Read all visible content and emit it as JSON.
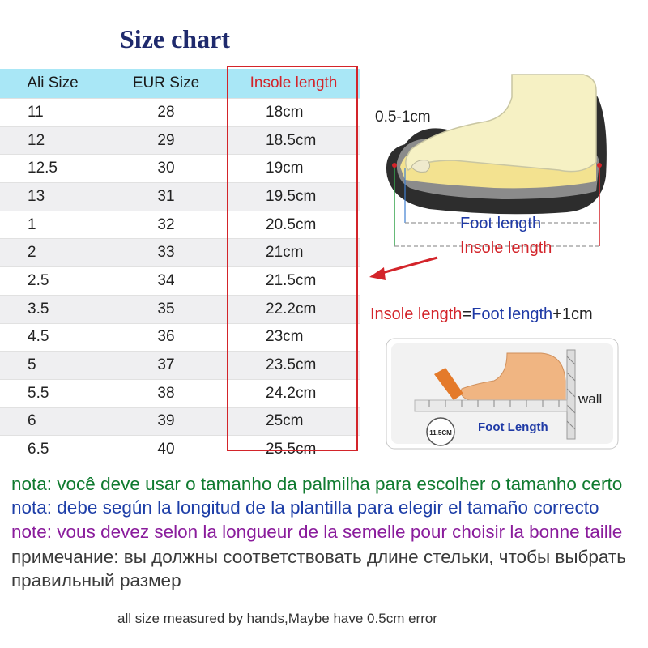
{
  "title": "Size chart",
  "table": {
    "headers": [
      "Ali Size",
      "EUR Size",
      "Insole length"
    ],
    "rows": [
      [
        "11",
        "28",
        "18cm"
      ],
      [
        "12",
        "29",
        "18.5cm"
      ],
      [
        "12.5",
        "30",
        "19cm"
      ],
      [
        "13",
        "31",
        "19.5cm"
      ],
      [
        "1",
        "32",
        "20.5cm"
      ],
      [
        "2",
        "33",
        "21cm"
      ],
      [
        "2.5",
        "34",
        "21.5cm"
      ],
      [
        "3.5",
        "35",
        "22.2cm"
      ],
      [
        "4.5",
        "36",
        "23cm"
      ],
      [
        "5",
        "37",
        "23.5cm"
      ],
      [
        "5.5",
        "38",
        "24.2cm"
      ],
      [
        "6",
        "39",
        "25cm"
      ],
      [
        "6.5",
        "40",
        "25.5cm"
      ]
    ]
  },
  "figure1": {
    "gap_label": "0.5-1cm",
    "foot_length_label": "Foot length",
    "insole_length_label": "Insole length"
  },
  "formula": {
    "insole": "Insole length",
    "equals": "=",
    "foot": "Foot length",
    "plus": "+",
    "one_cm": "1cm"
  },
  "figure2": {
    "wall_label": "wall",
    "foot_length_label": "Foot Length",
    "ruler_badge": "11.5CM"
  },
  "notes": {
    "pt": "nota: você deve usar o tamanho da palmilha para escolher o tamanho certo",
    "es": "nota: debe según la longitud de la plantilla para elegir el tamaño correcto",
    "fr": "note: vous devez selon la longueur de la semelle pour choisir la bonne taille",
    "ru": "примечание: вы должны соответствовать длине стельки, чтобы выбрать правильный размер"
  },
  "footer": "all size measured by hands,Maybe have 0.5cm error",
  "colors": {
    "title": "#1f2a6d",
    "header_bg": "#a9e7f6",
    "highlight_red": "#d3242a",
    "blue": "#1f3aa6",
    "note_pt": "#0f7a2f",
    "note_es": "#1e3fa8",
    "note_fr": "#8a1c9c"
  }
}
